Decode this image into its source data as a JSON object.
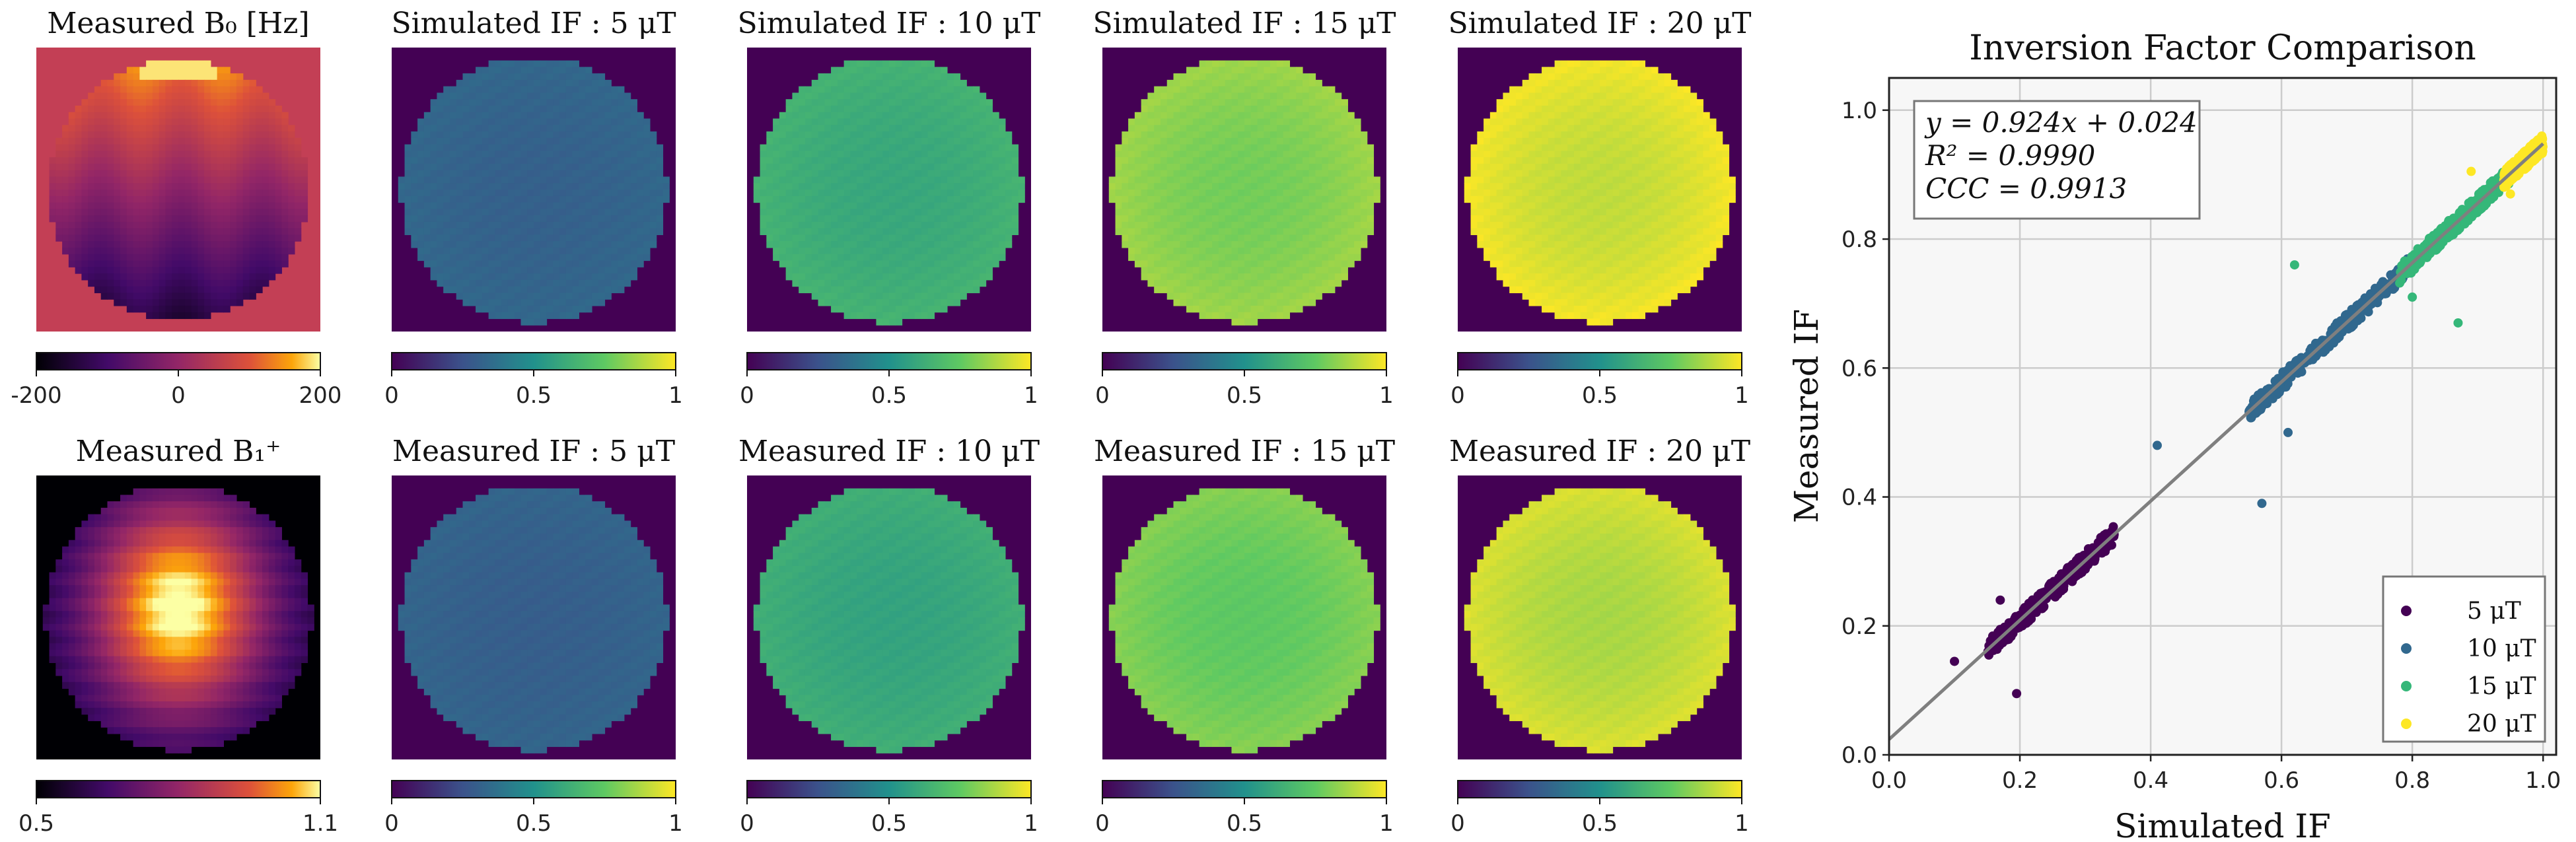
{
  "figure": {
    "panels": [
      {
        "id": "b0",
        "title": "Measured B₀ [Hz]",
        "map": "b0",
        "cmap": "inferno",
        "ticks": [
          "-200",
          "0",
          "200"
        ],
        "tick_pos": [
          0,
          0.5,
          1
        ]
      },
      {
        "id": "sim5",
        "title": "Simulated IF :  5 μT",
        "map": "if",
        "level": 0.33,
        "cmap": "viridis",
        "ticks": [
          "0",
          "0.5",
          "1"
        ],
        "tick_pos": [
          0,
          0.5,
          1
        ]
      },
      {
        "id": "sim10",
        "title": "Simulated IF :  10 μT",
        "map": "if",
        "level": 0.64,
        "cmap": "viridis",
        "ticks": [
          "0",
          "0.5",
          "1"
        ],
        "tick_pos": [
          0,
          0.5,
          1
        ]
      },
      {
        "id": "sim15",
        "title": "Simulated IF :  15 μT",
        "map": "if",
        "level": 0.84,
        "cmap": "viridis",
        "ticks": [
          "0",
          "0.5",
          "1"
        ],
        "tick_pos": [
          0,
          0.5,
          1
        ]
      },
      {
        "id": "sim20",
        "title": "Simulated IF :  20 μT",
        "map": "if",
        "level": 0.97,
        "cmap": "viridis",
        "ticks": [
          "0",
          "0.5",
          "1"
        ],
        "tick_pos": [
          0,
          0.5,
          1
        ]
      },
      {
        "id": "b1",
        "title": "Measured B₁⁺",
        "map": "b1",
        "cmap": "inferno",
        "ticks": [
          "0.5",
          "1.1"
        ],
        "tick_pos": [
          0,
          1
        ]
      },
      {
        "id": "meas5",
        "title": "Measured IF :  5 μT",
        "map": "if",
        "level": 0.32,
        "cmap": "viridis",
        "ticks": [
          "0",
          "0.5",
          "1"
        ],
        "tick_pos": [
          0,
          0.5,
          1
        ]
      },
      {
        "id": "meas10",
        "title": "Measured IF :  10 μT",
        "map": "if",
        "level": 0.62,
        "cmap": "viridis",
        "ticks": [
          "0",
          "0.5",
          "1"
        ],
        "tick_pos": [
          0,
          0.5,
          1
        ]
      },
      {
        "id": "meas15",
        "title": "Measured IF :  15 μT",
        "map": "if",
        "level": 0.8,
        "cmap": "viridis",
        "ticks": [
          "0",
          "0.5",
          "1"
        ],
        "tick_pos": [
          0,
          0.5,
          1
        ]
      },
      {
        "id": "meas20",
        "title": "Measured IF :  20 μT",
        "map": "if",
        "level": 0.93,
        "cmap": "viridis",
        "ticks": [
          "0",
          "0.5",
          "1"
        ],
        "tick_pos": [
          0,
          0.5,
          1
        ]
      }
    ]
  },
  "chart_data": {
    "type": "scatter",
    "title": "Inversion Factor Comparison",
    "xlabel": "Simulated IF",
    "ylabel": "Measured IF",
    "xlim": [
      0,
      1.02
    ],
    "ylim": [
      0,
      1.05
    ],
    "x_ticks": [
      "0.0",
      "0.2",
      "0.4",
      "0.6",
      "0.8",
      "1.0"
    ],
    "y_ticks": [
      "0.0",
      "0.2",
      "0.4",
      "0.6",
      "0.8",
      "1.0"
    ],
    "grid": true,
    "legend_position": "bottom-right",
    "fit": {
      "slope": 0.924,
      "intercept": 0.024,
      "color": "#7f7f7f"
    },
    "annotation": [
      "y = 0.924x + 0.024",
      "R² = 0.9990",
      "CCC = 0.9913"
    ],
    "series": [
      {
        "name": "5 μT",
        "color": "#440154",
        "x_range": [
          0.15,
          0.345
        ],
        "outliers": [
          [
            0.1,
            0.145
          ],
          [
            0.195,
            0.095
          ],
          [
            0.17,
            0.24
          ]
        ]
      },
      {
        "name": "10 μT",
        "color": "#31688e",
        "x_range": [
          0.55,
          0.8
        ],
        "outliers": [
          [
            0.41,
            0.48
          ],
          [
            0.57,
            0.39
          ],
          [
            0.61,
            0.5
          ]
        ]
      },
      {
        "name": "15 μT",
        "color": "#35b779",
        "x_range": [
          0.78,
          0.95
        ],
        "outliers": [
          [
            0.62,
            0.76
          ],
          [
            0.87,
            0.67
          ],
          [
            0.8,
            0.71
          ]
        ]
      },
      {
        "name": "20 μT",
        "color": "#fde725",
        "x_range": [
          0.94,
          1.0
        ],
        "outliers": [
          [
            0.89,
            0.905
          ],
          [
            0.95,
            0.87
          ]
        ]
      }
    ]
  }
}
